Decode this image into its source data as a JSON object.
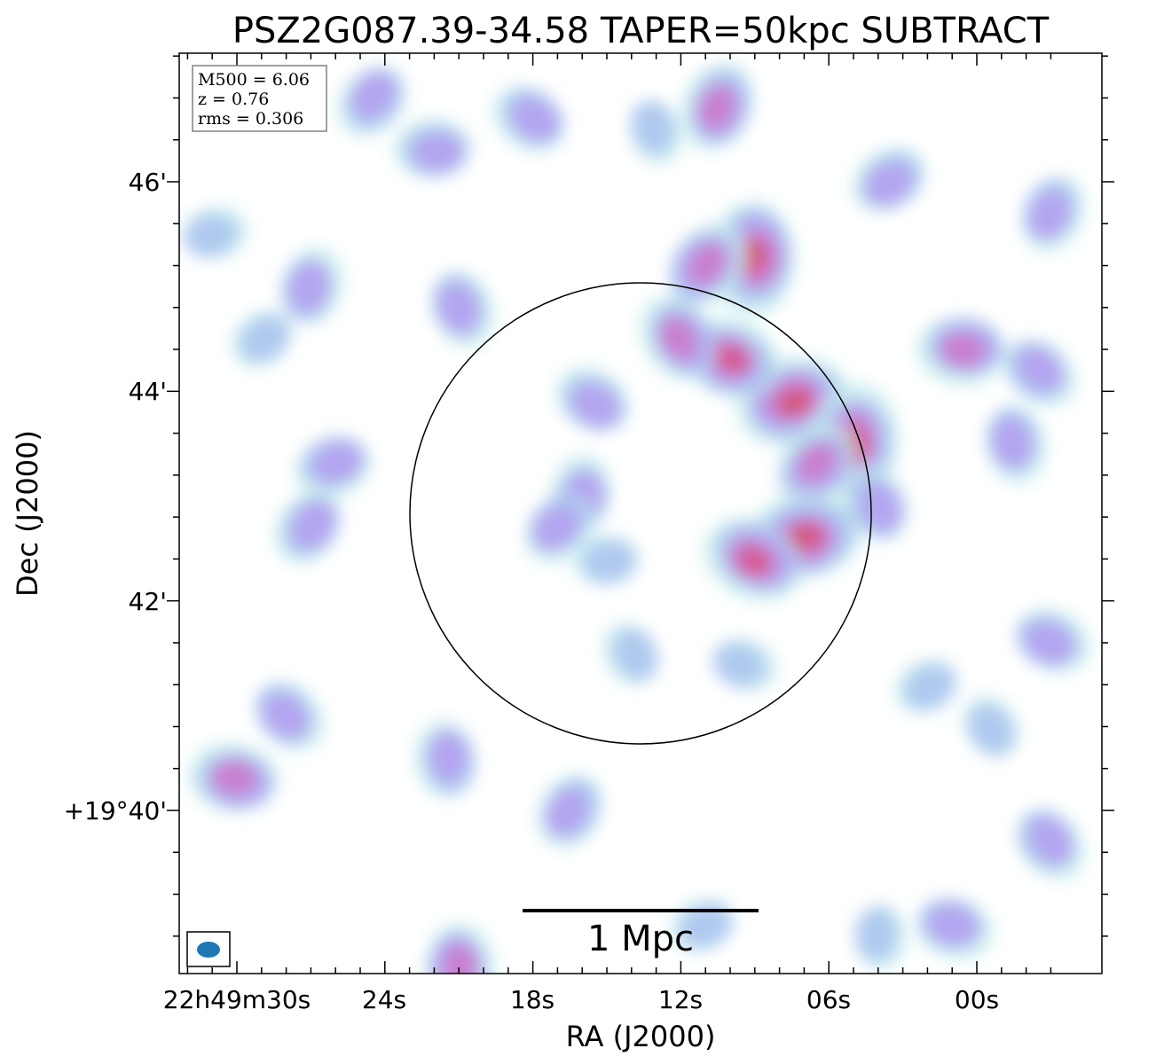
{
  "chart_data": {
    "type": "heatmap",
    "title": "PSZ2G087.39-34.58 TAPER=50kpc SUBTRACT",
    "xlabel": "RA (J2000)",
    "ylabel": "Dec (J2000)",
    "x_tick_labels": [
      "22h49m30s",
      "24s",
      "18s",
      "12s",
      "06s",
      "00s"
    ],
    "y_tick_labels": [
      "46'",
      "44'",
      "42'",
      "+19°40'"
    ],
    "info_box": {
      "m500": "M500 = 6.06",
      "z": "z = 0.76",
      "rms": "rms = 0.306"
    },
    "scale_bar_label": "1 Mpc",
    "colormap": [
      "#c4ecec",
      "#a9c3f0",
      "#b59ff0",
      "#cc79c9",
      "#d9507f",
      "#c85a4a"
    ],
    "emission_blobs": [
      {
        "ra_s": 9.0,
        "dec_m": 45.3,
        "level": 5
      },
      {
        "ra_s": 11.0,
        "dec_m": 45.2,
        "level": 3
      },
      {
        "ra_s": 7.5,
        "dec_m": 43.9,
        "level": 5
      },
      {
        "ra_s": 10.0,
        "dec_m": 44.3,
        "level": 4
      },
      {
        "ra_s": 12.0,
        "dec_m": 44.5,
        "level": 3
      },
      {
        "ra_s": 5.0,
        "dec_m": 43.5,
        "level": 5
      },
      {
        "ra_s": 6.5,
        "dec_m": 43.3,
        "level": 3
      },
      {
        "ra_s": 7.0,
        "dec_m": 42.6,
        "level": 5
      },
      {
        "ra_s": 9.0,
        "dec_m": 42.4,
        "level": 4
      },
      {
        "ra_s": 4.0,
        "dec_m": 42.9,
        "level": 2
      },
      {
        "ra_s": 16.0,
        "dec_m": 43.0,
        "level": 2
      },
      {
        "ra_s": 17.0,
        "dec_m": 42.7,
        "level": 2
      },
      {
        "ra_s": 15.0,
        "dec_m": 42.4,
        "level": 1
      },
      {
        "ra_s": 15.5,
        "dec_m": 43.9,
        "level": 2
      },
      {
        "ra_s": 21.0,
        "dec_m": 44.8,
        "level": 2
      },
      {
        "ra_s": 27.0,
        "dec_m": 45.0,
        "level": 2
      },
      {
        "ra_s": 29.0,
        "dec_m": 44.5,
        "level": 1
      },
      {
        "ra_s": 22.0,
        "dec_m": 46.3,
        "level": 2
      },
      {
        "ra_s": 18.0,
        "dec_m": 46.6,
        "level": 2
      },
      {
        "ra_s": 13.0,
        "dec_m": 46.5,
        "level": 1
      },
      {
        "ra_s": 10.5,
        "dec_m": 46.7,
        "level": 3
      },
      {
        "ra_s": 3.5,
        "dec_m": 46.0,
        "level": 2
      },
      {
        "ra_s": 0.5,
        "dec_m": 44.4,
        "level": 3
      },
      {
        "ra_s": -2.5,
        "dec_m": 44.2,
        "level": 2
      },
      {
        "ra_s": -1.5,
        "dec_m": 43.5,
        "level": 2
      },
      {
        "ra_s": -3.0,
        "dec_m": 45.7,
        "level": 2
      },
      {
        "ra_s": 2.0,
        "dec_m": 41.2,
        "level": 1
      },
      {
        "ra_s": 30.0,
        "dec_m": 40.3,
        "level": 3
      },
      {
        "ra_s": 28.0,
        "dec_m": 40.9,
        "level": 2
      },
      {
        "ra_s": 21.5,
        "dec_m": 40.5,
        "level": 2
      },
      {
        "ra_s": 16.5,
        "dec_m": 40.0,
        "level": 2
      },
      {
        "ra_s": 11.0,
        "dec_m": 38.9,
        "level": 1
      },
      {
        "ra_s": 1.0,
        "dec_m": 38.9,
        "level": 2
      },
      {
        "ra_s": -3.0,
        "dec_m": 39.7,
        "level": 2
      },
      {
        "ra_s": 21.0,
        "dec_m": 38.5,
        "level": 3
      },
      {
        "ra_s": 27.0,
        "dec_m": 42.7,
        "level": 2
      },
      {
        "ra_s": 26.0,
        "dec_m": 43.3,
        "level": 2
      },
      {
        "ra_s": 9.5,
        "dec_m": 41.4,
        "level": 1
      },
      {
        "ra_s": -0.5,
        "dec_m": 40.8,
        "level": 1
      },
      {
        "ra_s": 4.0,
        "dec_m": 38.8,
        "level": 1
      },
      {
        "ra_s": 24.5,
        "dec_m": 46.8,
        "level": 2
      },
      {
        "ra_s": 31.0,
        "dec_m": 45.5,
        "level": 1
      },
      {
        "ra_s": -3.0,
        "dec_m": 41.6,
        "level": 2
      },
      {
        "ra_s": 14.0,
        "dec_m": 41.5,
        "level": 1
      }
    ]
  }
}
